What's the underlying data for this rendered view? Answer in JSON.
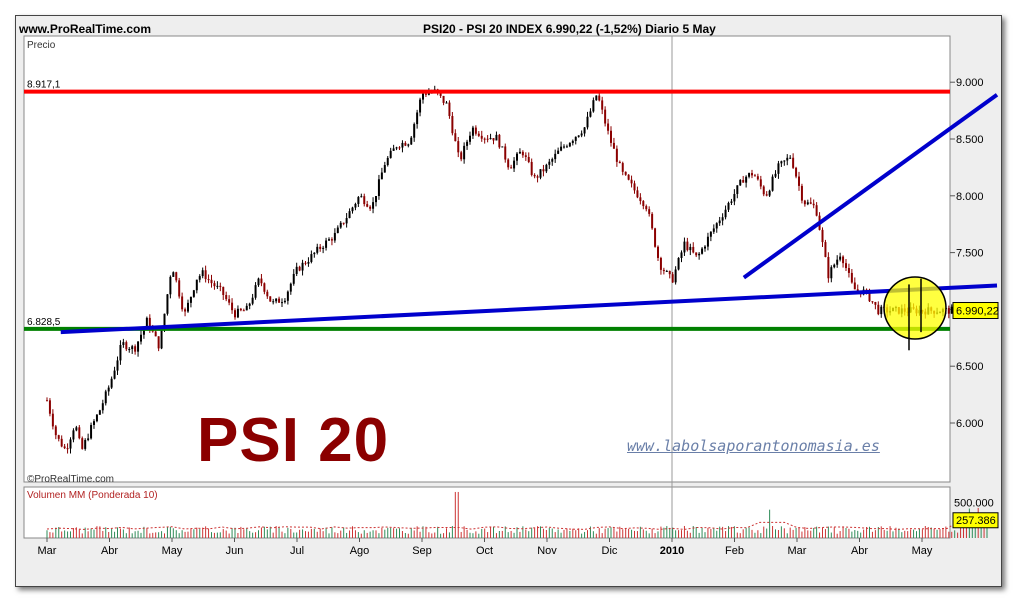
{
  "header": {
    "site": "www.ProRealTime.com",
    "title": "PSI20 - PSI 20 INDEX    6.990,22 (-1,52%)    Diario  5 May"
  },
  "watermarks": {
    "big_title": "PSI 20",
    "blog_url": "www.labolsaporantonomasia.es",
    "copyright": "©ProRealTime.com"
  },
  "colors": {
    "resistance": "#ff0000",
    "support": "#008000",
    "trend": "#0000cc",
    "candle_up": "#000000",
    "candle_down": "#8b0000",
    "highlight": "#ffff00"
  },
  "chart_data": [
    {
      "type": "line",
      "label": "Precio",
      "x_ticks": [
        "Mar",
        "Abr",
        "May",
        "Jun",
        "Jul",
        "Ago",
        "Sep",
        "Oct",
        "Nov",
        "Dic",
        "2010",
        "Feb",
        "Mar",
        "Abr",
        "May"
      ],
      "y_ticks": [
        {
          "value": 6000,
          "label": "6.000"
        },
        {
          "value": 6500,
          "label": "6.500"
        },
        {
          "value": 7000,
          "label": "7.000"
        },
        {
          "value": 7500,
          "label": "7.500"
        },
        {
          "value": 8000,
          "label": "8.000"
        },
        {
          "value": 8500,
          "label": "8.500"
        },
        {
          "value": 9000,
          "label": "9.000"
        }
      ],
      "ylim": [
        5600,
        9350
      ],
      "last_value": {
        "value": 6990.22,
        "label": "6.990,22"
      },
      "levels": [
        {
          "name": "resistance",
          "value": 8917.1,
          "label": "8.917,1"
        },
        {
          "name": "support",
          "value": 6828.5,
          "label": "6.828,5"
        }
      ],
      "trendlines": [
        {
          "from": [
            0.22,
            6800
          ],
          "to": [
            15.2,
            7210
          ]
        },
        {
          "from": [
            11.15,
            7280
          ],
          "to": [
            15.2,
            8890
          ]
        }
      ],
      "series": [
        {
          "x": [
            0,
            0.15,
            0.3,
            0.45,
            0.55,
            0.7,
            0.85,
            1.0,
            1.2,
            1.4,
            1.6,
            1.8,
            2.0,
            2.2,
            2.4,
            2.5,
            2.6,
            2.8,
            3.0,
            3.2,
            3.4,
            3.6,
            3.8,
            4.0,
            4.2,
            4.4,
            4.6,
            4.8,
            5.0,
            5.2,
            5.4,
            5.6,
            5.8,
            6.0,
            6.2,
            6.4,
            6.6,
            6.8,
            7.0,
            7.2,
            7.4,
            7.6,
            7.8,
            8.0,
            8.2,
            8.4,
            8.6,
            8.8,
            9.0,
            9.2,
            9.4,
            9.6,
            9.8,
            10.0,
            10.2,
            10.4,
            10.6,
            10.8,
            11.0,
            11.15,
            11.3,
            11.5,
            11.7,
            11.9,
            12.1,
            12.3,
            12.5,
            12.7,
            12.9,
            13.1,
            13.3,
            13.5,
            13.7,
            13.9,
            14.0,
            14.15,
            14.3,
            14.45,
            14.6,
            14.75,
            14.85,
            14.95,
            15.0,
            15.05
          ],
          "y": [
            6200,
            5880,
            5760,
            6000,
            5750,
            5950,
            6120,
            6330,
            6700,
            6650,
            6900,
            6670,
            7400,
            6950,
            7280,
            7320,
            7250,
            7150,
            6960,
            7000,
            7270,
            7050,
            7100,
            7350,
            7450,
            7560,
            7650,
            7820,
            8000,
            7900,
            8280,
            8450,
            8480,
            8900,
            8920,
            8800,
            8300,
            8600,
            8520,
            8510,
            8250,
            8400,
            8150,
            8260,
            8400,
            8500,
            8600,
            8900,
            8510,
            8200,
            8050,
            7900,
            7400,
            7250,
            7580,
            7450,
            7650,
            7830,
            8020,
            8160,
            8200,
            8000,
            8250,
            8350,
            7950,
            7900,
            7300,
            7500,
            7180,
            7150,
            6990,
            6990,
            6990,
            6990,
            6990,
            6990,
            6990,
            6990,
            6990,
            6990,
            6990,
            6990,
            6990,
            6990
          ]
        }
      ]
    },
    {
      "type": "bar",
      "label": "Volumen MM (Ponderada 10)",
      "y_ticks": [
        {
          "value": 500000,
          "label": "500.000"
        }
      ],
      "ylim": [
        0,
        720000
      ],
      "last_value": {
        "value": 257386,
        "label": "257.386"
      }
    }
  ]
}
